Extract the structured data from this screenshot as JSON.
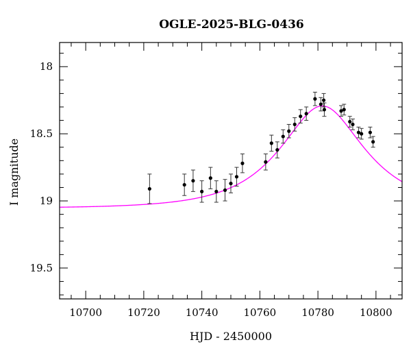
{
  "chart_data": {
    "type": "scatter",
    "title": "OGLE-2025-BLG-0436",
    "xlabel": "HJD - 2450000",
    "ylabel": "I magnitude",
    "xlim": [
      10691,
      10809
    ],
    "ylim": [
      19.73,
      17.82
    ],
    "y_inverted": true,
    "grid": false,
    "x_ticks": [
      10700,
      10720,
      10740,
      10760,
      10780,
      10800
    ],
    "x_tick_labels": [
      "10700",
      "10720",
      "10740",
      "10760",
      "10780",
      "10800"
    ],
    "y_ticks": [
      18,
      18.5,
      19,
      19.5
    ],
    "y_tick_labels": [
      "18",
      "18.5",
      "19",
      "19.5"
    ],
    "colors": {
      "model": "#ff00ff",
      "points": "#000000",
      "axes": "#000000"
    },
    "series": [
      {
        "type": "scatter",
        "points": [
          {
            "x": 10722.0,
            "y": 18.91,
            "err": 0.11
          },
          {
            "x": 10734.0,
            "y": 18.88,
            "err": 0.08
          },
          {
            "x": 10737.0,
            "y": 18.85,
            "err": 0.08
          },
          {
            "x": 10740.0,
            "y": 18.93,
            "err": 0.08
          },
          {
            "x": 10743.0,
            "y": 18.83,
            "err": 0.08
          },
          {
            "x": 10745.0,
            "y": 18.93,
            "err": 0.08
          },
          {
            "x": 10748.0,
            "y": 18.92,
            "err": 0.08
          },
          {
            "x": 10750.0,
            "y": 18.87,
            "err": 0.07
          },
          {
            "x": 10752.0,
            "y": 18.82,
            "err": 0.07
          },
          {
            "x": 10754.0,
            "y": 18.72,
            "err": 0.07
          },
          {
            "x": 10762.0,
            "y": 18.71,
            "err": 0.06
          },
          {
            "x": 10764.0,
            "y": 18.57,
            "err": 0.06
          },
          {
            "x": 10766.0,
            "y": 18.62,
            "err": 0.06
          },
          {
            "x": 10768.0,
            "y": 18.52,
            "err": 0.05
          },
          {
            "x": 10770.0,
            "y": 18.48,
            "err": 0.05
          },
          {
            "x": 10772.0,
            "y": 18.43,
            "err": 0.05
          },
          {
            "x": 10774.0,
            "y": 18.37,
            "err": 0.05
          },
          {
            "x": 10776.0,
            "y": 18.35,
            "err": 0.05
          },
          {
            "x": 10779.0,
            "y": 18.24,
            "err": 0.05
          },
          {
            "x": 10781.0,
            "y": 18.28,
            "err": 0.05
          },
          {
            "x": 10782.0,
            "y": 18.25,
            "err": 0.05
          },
          {
            "x": 10782.2,
            "y": 18.32,
            "err": 0.05
          },
          {
            "x": 10788.0,
            "y": 18.33,
            "err": 0.04
          },
          {
            "x": 10789.0,
            "y": 18.32,
            "err": 0.04
          },
          {
            "x": 10791.0,
            "y": 18.41,
            "err": 0.04
          },
          {
            "x": 10792.0,
            "y": 18.43,
            "err": 0.04
          },
          {
            "x": 10794.0,
            "y": 18.49,
            "err": 0.04
          },
          {
            "x": 10795.0,
            "y": 18.5,
            "err": 0.04
          },
          {
            "x": 10798.0,
            "y": 18.49,
            "err": 0.04
          },
          {
            "x": 10799.0,
            "y": 18.56,
            "err": 0.04
          }
        ]
      },
      {
        "type": "line",
        "model": "microlensing",
        "params": {
          "t0": 10781.5,
          "tE": 24,
          "u0": 0.55,
          "mag_base": 19.055
        }
      }
    ]
  }
}
